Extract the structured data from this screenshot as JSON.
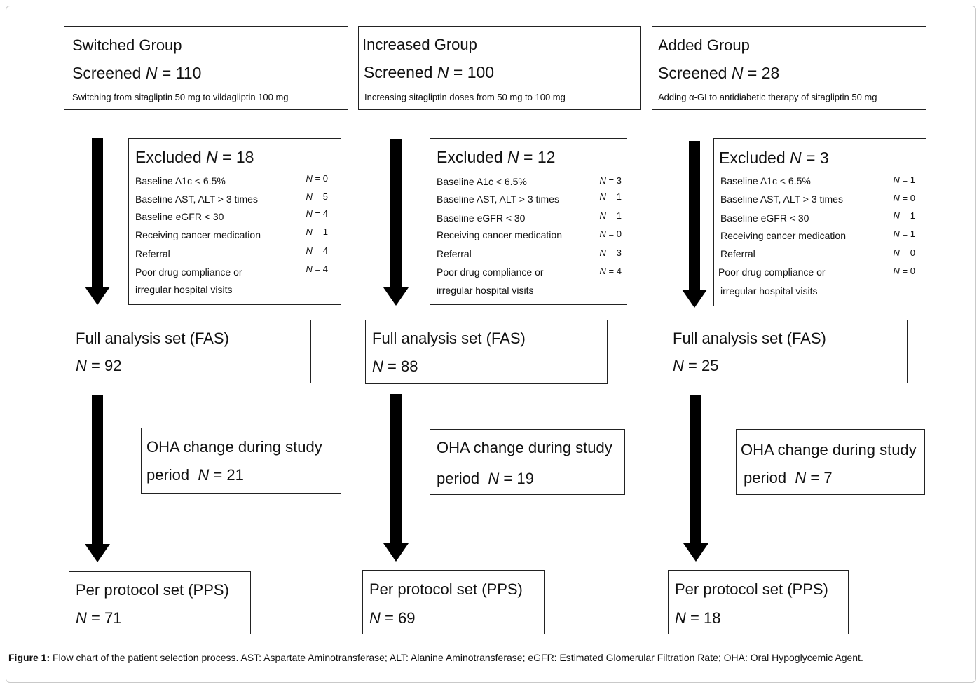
{
  "groups": [
    {
      "name": "Switched Group",
      "screened": "110",
      "description": "Switching from sitagliptin 50 mg to vildagliptin 100 mg",
      "excluded": "18",
      "fas": "92",
      "oha": "21",
      "pps": "71",
      "reasons_n": [
        "0",
        "5",
        "4",
        "1",
        "4",
        "4"
      ]
    },
    {
      "name": "Increased Group",
      "screened": "100",
      "description": "Increasing sitagliptin doses from 50 mg to 100 mg",
      "excluded": "12",
      "fas": "88",
      "oha": "19",
      "pps": "69",
      "reasons_n": [
        "3",
        "1",
        "1",
        "0",
        "3",
        "4"
      ]
    },
    {
      "name": "Added Group",
      "screened": "28",
      "description": "Adding α-GI to antidiabetic therapy of sitagliptin 50 mg",
      "excluded": "3",
      "fas": "25",
      "oha": "7",
      "pps": "18",
      "reasons_n": [
        "1",
        "0",
        "1",
        "1",
        "0",
        "0"
      ]
    }
  ],
  "labels": {
    "screened": "Screened",
    "excluded": "Excluded",
    "n_symbol": "N",
    "equals": " = ",
    "fas": "Full analysis set (FAS)",
    "oha_line1": "OHA change during study",
    "oha_line2": "period",
    "pps": "Per protocol set (PPS)"
  },
  "reasons": [
    "Baseline A1c < 6.5%",
    "Baseline AST, ALT > 3 times",
    "Baseline eGFR < 30",
    "Receiving cancer medication",
    "Referral",
    "Poor drug compliance or",
    "irregular hospital visits"
  ],
  "caption": {
    "label": "Figure 1:",
    "text": " Flow chart of the patient selection process. AST: Aspartate Aminotransferase; ALT: Alanine Aminotransferase; eGFR: Estimated Glomerular Filtration Rate; OHA: Oral Hypoglycemic Agent."
  }
}
